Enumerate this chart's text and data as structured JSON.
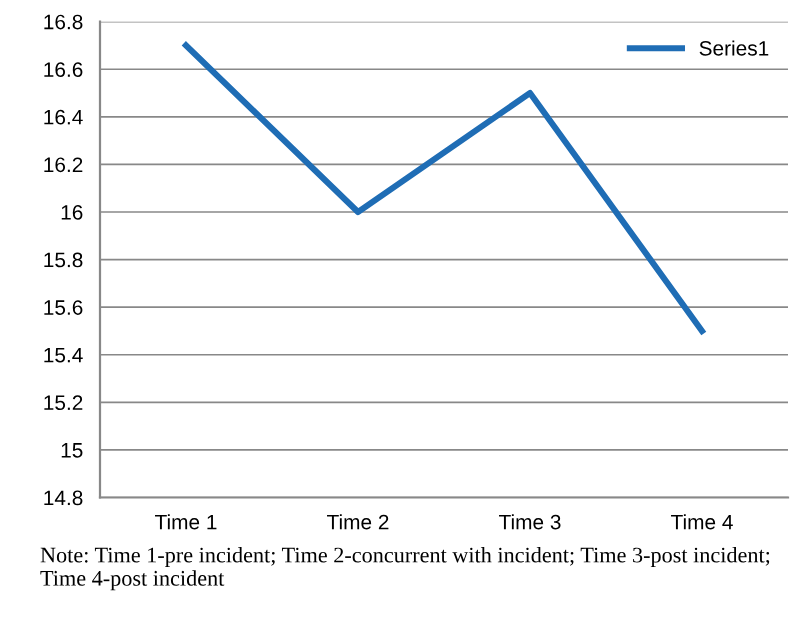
{
  "chart_data": {
    "type": "line",
    "categories": [
      "Time 1",
      "Time 2",
      "Time 3",
      "Time 4"
    ],
    "series": [
      {
        "name": "Series1",
        "color": "#1f6db5",
        "values": [
          16.7,
          16.0,
          16.5,
          15.5
        ]
      }
    ],
    "ylim": [
      14.8,
      16.8
    ],
    "yticks": [
      14.8,
      15,
      15.2,
      15.4,
      15.6,
      15.8,
      16,
      16.2,
      16.4,
      16.6,
      16.8
    ],
    "grid": "y",
    "legend": "top right",
    "marker": "none",
    "line_style": "solid",
    "annotations": [
      "Note: Time 1-pre incident; Time 2-concurrent with incident; Time 3-post incident; Time 4-post incident"
    ]
  }
}
